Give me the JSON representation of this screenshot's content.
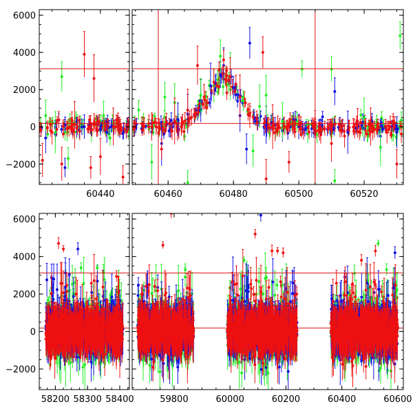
{
  "colors": {
    "blue": "#1010e0",
    "green": "#22ee22",
    "red": "#ee1111",
    "refline": "#dd1111",
    "axis": "#000000"
  },
  "chart_data": [
    {
      "type": "scatter",
      "title": "",
      "xlabel": "",
      "ylabel": "",
      "grid": false,
      "legend": "none",
      "panels": [
        {
          "xlim": [
            60421,
            60449
          ],
          "xticks": [
            60440
          ]
        },
        {
          "xlim": [
            60449,
            60532
          ],
          "xticks": [
            60460,
            60480,
            60500,
            60520
          ]
        }
      ],
      "ylim": [
        -3100,
        6300
      ],
      "yticks": [
        -2000,
        0,
        2000,
        4000,
        6000
      ],
      "hlines": [
        180,
        3120
      ],
      "vlines": [
        60449,
        60457,
        60505
      ],
      "series": [
        {
          "color": "blue",
          "points": [
            [
              60423,
              -600
            ],
            [
              60426,
              -400
            ],
            [
              60429,
              -2200
            ],
            [
              60435,
              0
            ],
            [
              60442,
              -300
            ],
            [
              60458,
              -900
            ],
            [
              60463,
              400
            ],
            [
              60466,
              700
            ],
            [
              60470,
              1400
            ],
            [
              60473,
              2200
            ],
            [
              60476,
              2800
            ],
            [
              60477,
              3300
            ],
            [
              60480,
              2100
            ],
            [
              60482,
              600
            ],
            [
              60484,
              -1200
            ],
            [
              60485,
              4500
            ],
            [
              60490,
              100
            ],
            [
              60495,
              -200
            ],
            [
              60500,
              0
            ],
            [
              60511,
              1900
            ],
            [
              60515,
              -300
            ],
            [
              60520,
              -100
            ],
            [
              60525,
              -500
            ],
            [
              60530,
              -300
            ]
          ]
        },
        {
          "color": "green",
          "points": [
            [
              60423,
              600
            ],
            [
              60426,
              -300
            ],
            [
              60428,
              2700
            ],
            [
              60430,
              -1700
            ],
            [
              60441,
              600
            ],
            [
              60443,
              -600
            ],
            [
              60451,
              900
            ],
            [
              60455,
              -1900
            ],
            [
              60459,
              1600
            ],
            [
              60462,
              1300
            ],
            [
              60466,
              -3000
            ],
            [
              60470,
              1700
            ],
            [
              60474,
              2200
            ],
            [
              60476,
              3800
            ],
            [
              60479,
              2700
            ],
            [
              60483,
              1400
            ],
            [
              60486,
              -1300
            ],
            [
              60488,
              1100
            ],
            [
              60490,
              1700
            ],
            [
              60495,
              300
            ],
            [
              60501,
              3100
            ],
            [
              60510,
              3100
            ],
            [
              60511,
              -2900
            ],
            [
              60520,
              500
            ],
            [
              60525,
              -1100
            ],
            [
              60531,
              4900
            ]
          ]
        },
        {
          "color": "red",
          "points": [
            [
              60422,
              -1800
            ],
            [
              60425,
              -300
            ],
            [
              60428,
              -2000
            ],
            [
              60432,
              100
            ],
            [
              60435,
              3900
            ],
            [
              60437,
              -2200
            ],
            [
              60438,
              2600
            ],
            [
              60440,
              -1600
            ],
            [
              60444,
              0
            ],
            [
              60447,
              -2700
            ],
            [
              60455,
              0
            ],
            [
              60458,
              -1200
            ],
            [
              60462,
              300
            ],
            [
              60466,
              900
            ],
            [
              60469,
              3300
            ],
            [
              60471,
              1600
            ],
            [
              60474,
              2400
            ],
            [
              60477,
              3600
            ],
            [
              60479,
              2700
            ],
            [
              60482,
              1600
            ],
            [
              60485,
              600
            ],
            [
              60489,
              4000
            ],
            [
              60490,
              -2800
            ],
            [
              60492,
              0
            ],
            [
              60497,
              -1900
            ],
            [
              60500,
              100
            ],
            [
              60505,
              200
            ],
            [
              60510,
              -900
            ],
            [
              60514,
              -500
            ],
            [
              60518,
              300
            ],
            [
              60522,
              0
            ],
            [
              60527,
              -300
            ],
            [
              60530,
              -2000
            ]
          ]
        }
      ]
    },
    {
      "type": "scatter",
      "title": "",
      "xlabel": "",
      "ylabel": "",
      "grid": false,
      "legend": "none",
      "panels": [
        {
          "xlim": [
            58150,
            58430
          ],
          "xticks": [
            58200,
            58300,
            58400
          ],
          "clusters": [
            [
              58170,
              58410
            ]
          ]
        },
        {
          "xlim": [
            59650,
            60620
          ],
          "xticks": [
            59800,
            60000,
            60200,
            60400,
            60600
          ],
          "clusters": [
            [
              59670,
              59870
            ],
            [
              59990,
              60240
            ],
            [
              60360,
              60600
            ]
          ]
        }
      ],
      "ylim": [
        -3100,
        6300
      ],
      "yticks": [
        -2000,
        0,
        2000,
        4000,
        6000
      ],
      "hlines": [
        180,
        3120
      ],
      "outliers": [
        {
          "color": "red",
          "points": [
            [
              58210,
              4700
            ],
            [
              58225,
              4400
            ],
            [
              59760,
              4600
            ],
            [
              59790,
              6300
            ],
            [
              60090,
              5200
            ],
            [
              60150,
              4300
            ],
            [
              60170,
              4300
            ],
            [
              60190,
              4200
            ],
            [
              60470,
              3800
            ],
            [
              60520,
              4300
            ]
          ]
        },
        {
          "color": "blue",
          "points": [
            [
              58270,
              4400
            ],
            [
              60110,
              6200
            ],
            [
              60590,
              4200
            ]
          ]
        },
        {
          "color": "green",
          "points": [
            [
              58280,
              3400
            ],
            [
              58330,
              3400
            ],
            [
              59840,
              3300
            ],
            [
              60050,
              3800
            ],
            [
              60530,
              4700
            ],
            [
              60560,
              3300
            ]
          ]
        }
      ]
    }
  ]
}
